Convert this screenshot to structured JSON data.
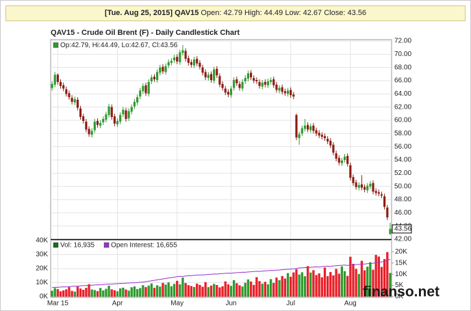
{
  "header": {
    "date": "[Tue. Aug 25, 2015]",
    "symbol": "QAV15",
    "quote": "Open: 42.79 High: 44.49 Low: 42.67 Close: 43.56"
  },
  "watermark": "finanso.net",
  "chart_data": {
    "type": "candlestick",
    "title": "QAV15 - Crude Oil Brent (F) - Daily Candlestick Chart",
    "legend_label": "Op:42.79, Hi:44.49, Lo:42.67, Cl:43.56",
    "last_label": "43.56",
    "up_color": "#2f9a2f",
    "down_color": "#8c1c13",
    "legend_color": "#2f9a2f",
    "grid": true,
    "ylim": [
      42,
      72
    ],
    "yticks": [
      {
        "value": 42,
        "label": "42.00"
      },
      {
        "value": 44,
        "label": "44.00"
      },
      {
        "value": 46,
        "label": "46.00"
      },
      {
        "value": 48,
        "label": "48.00"
      },
      {
        "value": 50,
        "label": "50.00"
      },
      {
        "value": 52,
        "label": "52.00"
      },
      {
        "value": 54,
        "label": "54.00"
      },
      {
        "value": 56,
        "label": "56.00"
      },
      {
        "value": 58,
        "label": "58.00"
      },
      {
        "value": 60,
        "label": "60.00"
      },
      {
        "value": 62,
        "label": "62.00"
      },
      {
        "value": 64,
        "label": "64.00"
      },
      {
        "value": 66,
        "label": "66.00"
      },
      {
        "value": 68,
        "label": "68.00"
      },
      {
        "value": 70,
        "label": "70.00"
      },
      {
        "value": 72,
        "label": "72.00"
      }
    ],
    "categories": [
      null,
      null,
      "Mar 15",
      null,
      null,
      null,
      null,
      null,
      null,
      null,
      null,
      null,
      null,
      null,
      null,
      null,
      null,
      null,
      null,
      null,
      null,
      null,
      null,
      "Apr",
      null,
      null,
      null,
      null,
      null,
      null,
      null,
      null,
      null,
      null,
      null,
      null,
      null,
      null,
      null,
      null,
      null,
      null,
      null,
      null,
      "May",
      null,
      null,
      null,
      null,
      null,
      null,
      null,
      null,
      null,
      null,
      null,
      null,
      null,
      null,
      null,
      null,
      null,
      null,
      "Jun",
      null,
      null,
      null,
      null,
      null,
      null,
      null,
      null,
      null,
      null,
      null,
      null,
      null,
      null,
      null,
      null,
      null,
      null,
      null,
      null,
      "Jul",
      null,
      null,
      null,
      null,
      null,
      null,
      null,
      null,
      null,
      null,
      null,
      null,
      null,
      null,
      null,
      null,
      null,
      null,
      null,
      null,
      "Aug",
      null,
      null,
      null,
      null,
      null,
      null,
      null,
      null,
      null,
      null,
      null,
      null,
      null,
      null
    ],
    "open": [
      64.9,
      65.4,
      66.9,
      65.8,
      65.3,
      64.7,
      64.1,
      63.4,
      62.7,
      63.1,
      61.8,
      60.6,
      59.8,
      58.7,
      57.8,
      58.5,
      59.9,
      59.2,
      59.7,
      60.1,
      60.8,
      62.0,
      60.6,
      59.4,
      59.8,
      60.9,
      61.5,
      60.3,
      61.3,
      62.1,
      62.7,
      63.6,
      64.4,
      65.3,
      64.0,
      65.9,
      66.6,
      66.1,
      67.2,
      68.1,
      67.3,
      68.3,
      68.7,
      69.1,
      69.6,
      68.8,
      70.2,
      70.5,
      69.4,
      68.8,
      68.3,
      69.3,
      68.7,
      68.0,
      67.3,
      66.4,
      67.0,
      66.0,
      67.8,
      66.7,
      65.5,
      64.8,
      64.3,
      63.8,
      64.9,
      66.2,
      65.5,
      64.8,
      65.9,
      66.3,
      67.2,
      66.4,
      66.1,
      65.8,
      65.1,
      65.8,
      65.3,
      65.8,
      66.2,
      65.4,
      64.5,
      65.0,
      64.4,
      64.0,
      64.6,
      63.9,
      60.8,
      57.3,
      58.0,
      58.7,
      59.3,
      58.5,
      59.2,
      58.5,
      58.1,
      57.8,
      57.6,
      57.2,
      56.9,
      56.3,
      55.0,
      54.3,
      53.5,
      54.0,
      54.6,
      53.2,
      51.4,
      50.6,
      49.8,
      50.3,
      49.9,
      49.4,
      50.0,
      50.5,
      49.3,
      49.1,
      48.8,
      48.5,
      46.8,
      42.79
    ],
    "high": [
      65.9,
      67.3,
      67.1,
      66.2,
      65.7,
      65.1,
      64.5,
      63.8,
      63.6,
      63.5,
      62.2,
      61.0,
      60.2,
      59.1,
      58.8,
      60.2,
      60.3,
      60.0,
      60.6,
      61.3,
      62.5,
      62.4,
      61.0,
      60.3,
      61.2,
      62.0,
      61.9,
      61.8,
      62.4,
      63.2,
      63.9,
      64.9,
      65.6,
      65.7,
      66.2,
      66.9,
      67.0,
      67.7,
      68.4,
      68.5,
      68.6,
      69.2,
      69.4,
      69.9,
      70.0,
      70.7,
      71.4,
      70.9,
      69.8,
      69.2,
      69.6,
      69.7,
      69.1,
      68.4,
      67.7,
      67.3,
      67.4,
      68.1,
      68.2,
      67.1,
      65.9,
      65.2,
      64.7,
      65.2,
      66.5,
      66.6,
      65.9,
      66.2,
      66.8,
      67.5,
      67.6,
      66.8,
      66.5,
      66.2,
      66.1,
      66.2,
      66.3,
      66.5,
      66.6,
      65.8,
      65.3,
      65.4,
      64.8,
      64.9,
      65.0,
      64.3,
      61.0,
      58.3,
      59.2,
      60.2,
      59.7,
      59.5,
      59.6,
      58.9,
      58.5,
      58.2,
      58.0,
      57.6,
      57.3,
      56.7,
      55.4,
      54.7,
      54.3,
      54.9,
      55.0,
      53.6,
      51.8,
      51.0,
      50.6,
      51.7,
      50.3,
      50.5,
      50.8,
      50.9,
      49.7,
      49.5,
      49.2,
      48.9,
      47.2,
      44.49
    ],
    "low": [
      64.5,
      65.0,
      65.4,
      64.8,
      64.4,
      63.6,
      63.1,
      62.4,
      62.3,
      61.5,
      60.1,
      59.5,
      58.2,
      57.5,
      57.4,
      58.1,
      58.9,
      58.8,
      59.3,
      59.7,
      60.4,
      60.1,
      59.1,
      59.0,
      59.4,
      60.5,
      59.8,
      59.9,
      60.9,
      61.7,
      62.3,
      63.2,
      64.0,
      63.7,
      63.6,
      65.5,
      65.8,
      65.7,
      66.8,
      67.0,
      66.9,
      67.9,
      68.3,
      68.7,
      68.5,
      68.4,
      69.8,
      68.9,
      68.3,
      68.0,
      67.9,
      68.2,
      67.7,
      66.8,
      66.1,
      66.0,
      65.7,
      65.6,
      66.4,
      65.0,
      64.5,
      63.8,
      63.5,
      63.4,
      64.5,
      65.2,
      64.5,
      64.4,
      65.5,
      65.9,
      66.1,
      65.6,
      65.5,
      64.8,
      64.7,
      65.0,
      64.9,
      65.4,
      64.9,
      64.2,
      64.1,
      63.9,
      63.7,
      63.6,
      63.4,
      63.2,
      57.0,
      56.3,
      57.6,
      58.3,
      58.2,
      58.1,
      58.0,
      57.6,
      57.3,
      57.1,
      56.9,
      56.4,
      55.8,
      54.7,
      53.8,
      53.2,
      53.1,
      53.6,
      53.0,
      50.9,
      50.1,
      49.5,
      49.4,
      49.4,
      49.1,
      49.0,
      49.6,
      48.8,
      48.6,
      48.5,
      48.2,
      46.5,
      44.9,
      42.67
    ],
    "close": [
      65.5,
      66.9,
      65.8,
      65.2,
      64.8,
      64.0,
      63.5,
      62.8,
      63.2,
      61.9,
      60.5,
      59.9,
      58.6,
      57.9,
      58.4,
      59.8,
      59.3,
      59.6,
      60.2,
      60.9,
      62.1,
      60.5,
      59.5,
      59.9,
      60.8,
      61.6,
      60.2,
      61.4,
      62.0,
      62.8,
      63.5,
      64.5,
      65.2,
      64.1,
      65.8,
      66.5,
      66.2,
      67.3,
      68.0,
      67.4,
      68.2,
      68.8,
      69.0,
      69.5,
      68.9,
      70.3,
      70.6,
      69.3,
      68.7,
      68.4,
      69.2,
      68.6,
      68.1,
      67.2,
      66.5,
      66.9,
      66.1,
      67.7,
      66.8,
      65.4,
      64.9,
      64.2,
      63.9,
      64.8,
      66.1,
      65.6,
      64.9,
      65.8,
      66.4,
      67.1,
      66.5,
      66.0,
      65.9,
      65.2,
      65.7,
      65.4,
      65.9,
      66.1,
      65.3,
      64.6,
      64.9,
      64.3,
      64.1,
      64.5,
      63.8,
      63.6,
      57.4,
      57.9,
      58.8,
      59.2,
      58.6,
      59.1,
      58.4,
      58.0,
      57.7,
      57.5,
      57.3,
      56.8,
      56.2,
      55.1,
      54.2,
      53.6,
      53.9,
      54.5,
      53.4,
      51.3,
      50.5,
      49.9,
      50.2,
      49.8,
      49.5,
      50.1,
      50.4,
      49.2,
      49.0,
      48.9,
      48.6,
      46.9,
      45.3,
      43.56
    ],
    "volume": {
      "ylim": [
        0,
        40000
      ],
      "yticks": [
        {
          "value": 0,
          "label": "0K"
        },
        {
          "value": 10000,
          "label": "10K"
        },
        {
          "value": 20000,
          "label": "20K"
        },
        {
          "value": 30000,
          "label": "30K"
        },
        {
          "value": 40000,
          "label": "40K"
        }
      ],
      "y2lim": [
        0,
        25000
      ],
      "y2ticks": [
        {
          "value": 0,
          "label": "0K"
        },
        {
          "value": 5000,
          "label": "5K"
        },
        {
          "value": 10000,
          "label": "10K"
        },
        {
          "value": 15000,
          "label": "15K"
        },
        {
          "value": 20000,
          "label": "20K"
        }
      ],
      "series": [
        {
          "name": "Vol: 16,935",
          "color": "#1a6b1a",
          "up_color": "#2e9a2e",
          "down_color": "#e8202a",
          "values": [
            4200,
            6100,
            5300,
            3800,
            4500,
            5200,
            6800,
            4100,
            3600,
            7200,
            5800,
            4900,
            6300,
            8900,
            5100,
            4700,
            3900,
            6200,
            4400,
            5600,
            7800,
            5200,
            4600,
            3800,
            5900,
            6400,
            5100,
            4300,
            6700,
            7300,
            5400,
            6100,
            8200,
            6800,
            7900,
            9400,
            6300,
            8100,
            7200,
            9800,
            8600,
            10200,
            7400,
            9100,
            11300,
            8800,
            13600,
            9700,
            8200,
            7600,
            6900,
            9300,
            8400,
            7100,
            10400,
            6800,
            7900,
            9100,
            8300,
            6600,
            7400,
            10900,
            8800,
            7700,
            11800,
            9600,
            8100,
            7200,
            9900,
            12300,
            10800,
            8400,
            13900,
            11100,
            9200,
            10600,
            8800,
            12500,
            9800,
            13600,
            11800,
            14700,
            12900,
            16800,
            14200,
            17300,
            19600,
            15800,
            17400,
            14600,
            21800,
            17200,
            18900,
            15400,
            16600,
            13800,
            20800,
            14600,
            17600,
            15200,
            19800,
            16400,
            21600,
            18200,
            14800,
            28500,
            23400,
            19800,
            16200,
            25600,
            18800,
            21400,
            24600,
            19200,
            29800,
            28600,
            21200,
            26800,
            31800,
            16935
          ]
        },
        {
          "name": "Open Interest: 16,655",
          "color": "#9933cc",
          "axis": "y2",
          "values": [
            4100,
            4200,
            4150,
            4300,
            4400,
            4350,
            4500,
            4600,
            4700,
            4650,
            4800,
            4900,
            5000,
            4950,
            5100,
            5200,
            5300,
            5250,
            5400,
            5500,
            5600,
            5550,
            5700,
            5800,
            5900,
            5850,
            6000,
            6100,
            6200,
            6150,
            6300,
            6400,
            6500,
            6700,
            6900,
            7100,
            7300,
            7500,
            7700,
            7900,
            8100,
            8300,
            8500,
            8700,
            8900,
            9100,
            9000,
            9200,
            9300,
            9400,
            9500,
            9600,
            9700,
            9650,
            9800,
            9900,
            10000,
            10100,
            10050,
            10200,
            10300,
            10400,
            10500,
            10450,
            10600,
            10700,
            10800,
            10900,
            10850,
            11000,
            11100,
            11200,
            11300,
            11250,
            11400,
            11500,
            11600,
            11700,
            11650,
            11800,
            11900,
            12000,
            12100,
            12200,
            12300,
            12400,
            12600,
            12800,
            12900,
            13000,
            12900,
            13100,
            13200,
            13300,
            13200,
            13400,
            13500,
            13600,
            13500,
            13700,
            13800,
            13900,
            14000,
            14100,
            13900,
            14100,
            14200,
            14300,
            14400,
            14600,
            14500,
            14700,
            14800,
            14900,
            15100,
            15300,
            15500,
            15800,
            16200,
            16655
          ]
        }
      ]
    }
  }
}
